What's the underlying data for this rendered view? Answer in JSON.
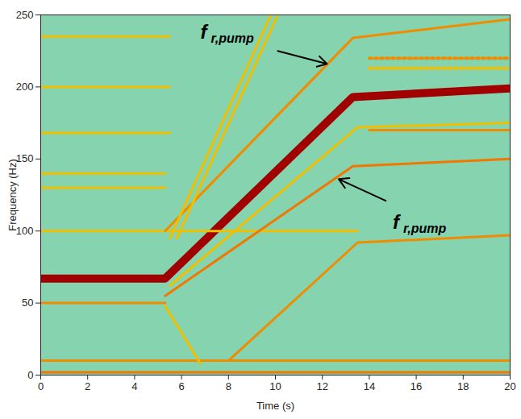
{
  "chart_data": {
    "type": "line",
    "x_label": "Time (s)",
    "y_label": "Frequency (Hz)",
    "xlim": [
      0,
      20
    ],
    "xticks": [
      0,
      2,
      4,
      6,
      8,
      10,
      12,
      14,
      16,
      18,
      20
    ],
    "ylim": [
      0,
      250
    ],
    "yticks": [
      0,
      50,
      100,
      150,
      200,
      250
    ],
    "tick_labels": true,
    "grid": false,
    "series": [
      {
        "color": "#a00000",
        "line_style": "thick",
        "x": [
          0,
          5.3,
          13.3,
          20
        ],
        "values": [
          67,
          67,
          193,
          199
        ]
      },
      {
        "color": "#f0c000",
        "line_style": "solid",
        "x": [
          0,
          5.5
        ],
        "values": [
          235,
          235
        ]
      },
      {
        "color": "#f0c000",
        "line_style": "solid",
        "x": [
          0,
          5.5
        ],
        "values": [
          200,
          200
        ]
      },
      {
        "color": "#f0c000",
        "line_style": "solid",
        "x": [
          0,
          5.5
        ],
        "values": [
          168,
          168
        ]
      },
      {
        "color": "#f0c000",
        "line_style": "solid",
        "x": [
          0,
          5.3
        ],
        "values": [
          140,
          140
        ]
      },
      {
        "color": "#f0c000",
        "line_style": "solid",
        "x": [
          0,
          5.3
        ],
        "values": [
          130,
          130
        ]
      },
      {
        "color": "#f0c000",
        "line_style": "solid",
        "x": [
          0,
          13.5
        ],
        "values": [
          100,
          100
        ]
      },
      {
        "color": "#f08c00",
        "line_style": "solid",
        "x": [
          0,
          5.3
        ],
        "values": [
          50,
          50
        ]
      },
      {
        "color": "#f08c00",
        "line_style": "solid",
        "x": [
          0,
          20
        ],
        "values": [
          10,
          10
        ]
      },
      {
        "color": "#f07800",
        "line_style": "solid",
        "x": [
          0,
          20
        ],
        "values": [
          2,
          2
        ]
      },
      {
        "color": "#f08c00",
        "line_style": "solid",
        "x": [
          5.3,
          13.3,
          20
        ],
        "values": [
          100,
          234,
          247
        ]
      },
      {
        "color": "#f0c000",
        "line_style": "solid",
        "x": [
          5.5,
          9.8
        ],
        "values": [
          95,
          250
        ]
      },
      {
        "color": "#f0c000",
        "line_style": "solid",
        "x": [
          5.8,
          10.1
        ],
        "values": [
          95,
          250
        ]
      },
      {
        "color": "#f07800",
        "line_style": "solid",
        "x": [
          5.3,
          13.3,
          20
        ],
        "values": [
          55,
          145,
          150
        ]
      },
      {
        "color": "#f0c000",
        "line_style": "solid",
        "x": [
          5.5,
          13.5,
          20
        ],
        "values": [
          62,
          172,
          175
        ]
      },
      {
        "color": "#f0c000",
        "line_style": "solid",
        "x": [
          5.3,
          6.8
        ],
        "values": [
          48,
          8
        ]
      },
      {
        "color": "#f08c00",
        "line_style": "solid",
        "x": [
          8,
          13.5,
          20
        ],
        "values": [
          10,
          92,
          97
        ]
      },
      {
        "color": "#f08c00",
        "line_style": "dotted",
        "x": [
          14,
          20
        ],
        "values": [
          220,
          220
        ]
      },
      {
        "color": "#f0c000",
        "line_style": "dotted",
        "x": [
          14,
          20
        ],
        "values": [
          213,
          213
        ]
      },
      {
        "color": "#f08c00",
        "line_style": "solid",
        "x": [
          14,
          20
        ],
        "values": [
          170,
          170
        ]
      }
    ],
    "annotations": [
      {
        "text": "f",
        "subscript": "r,pump",
        "x": 6.8,
        "y": 238,
        "arrow_start": [
          10.1,
          225
        ],
        "arrow_end": [
          12.2,
          216
        ]
      },
      {
        "text": "f",
        "subscript": "r,pump",
        "x": 15.0,
        "y": 106,
        "arrow_start": [
          14.7,
          121
        ],
        "arrow_end": [
          12.7,
          136
        ]
      }
    ]
  }
}
